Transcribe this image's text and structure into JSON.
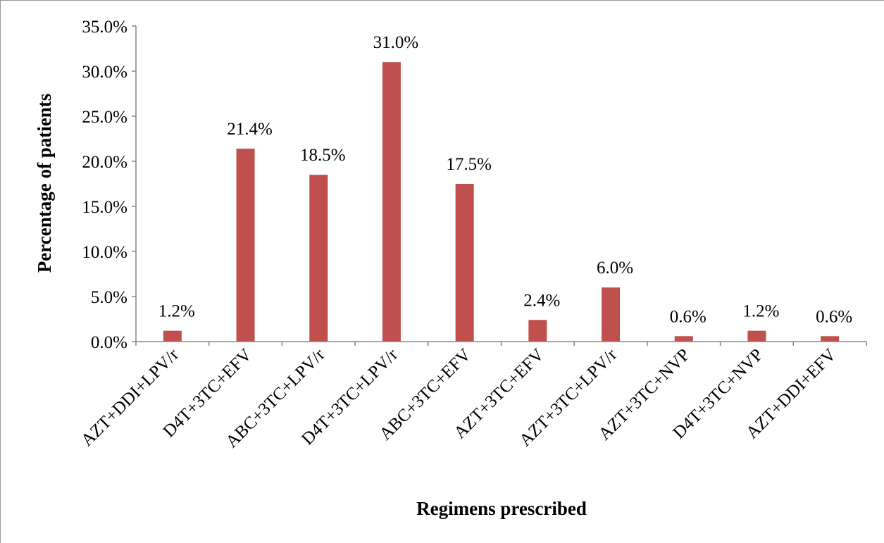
{
  "chart_data": {
    "type": "bar",
    "title": "",
    "xlabel": "Regimens prescribed",
    "ylabel": "Percentage of patients",
    "categories": [
      "AZT+DDI+LPV/r",
      "D4T+3TC+EFV",
      "ABC+3TC+LPV/r",
      "D4T+3TC+LPV/r",
      "ABC+3TC+EFV",
      "AZT+3TC+EFV",
      "AZT+3TC+LPV/r",
      "AZT+3TC+NVP",
      "D4T+3TC+NVP",
      "AZT+DDI+EFV"
    ],
    "values": [
      1.2,
      21.4,
      18.5,
      31.0,
      17.5,
      2.4,
      6.0,
      0.6,
      1.2,
      0.6
    ],
    "data_labels": [
      "1.2%",
      "21.4%",
      "18.5%",
      "31.0%",
      "17.5%",
      "2.4%",
      "6.0%",
      "0.6%",
      "1.2%",
      "0.6%"
    ],
    "ylim": [
      0,
      35
    ],
    "yticks": [
      0,
      5,
      10,
      15,
      20,
      25,
      30,
      35
    ],
    "ytick_labels": [
      "0.0%",
      "5.0%",
      "10.0%",
      "15.0%",
      "20.0%",
      "25.0%",
      "30.0%",
      "35.0%"
    ],
    "grid": false,
    "legend": "none",
    "bar_color": "#C0504D",
    "axis_color": "#868686",
    "border_color": "#999999"
  }
}
